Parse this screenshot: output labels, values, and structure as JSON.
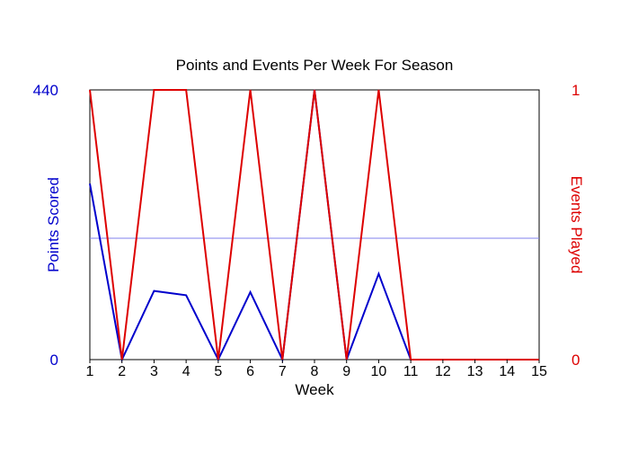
{
  "chart_data": {
    "type": "line",
    "title": "Points and Events Per Week For Season",
    "xlabel": "Week",
    "x": [
      1,
      2,
      3,
      4,
      5,
      6,
      7,
      8,
      9,
      10,
      11,
      12,
      13,
      14,
      15
    ],
    "xlim": [
      1,
      15
    ],
    "grid": false,
    "legend": "none",
    "y_left": {
      "label": "Points Scored",
      "ylim": [
        0,
        440
      ],
      "tick_labels": [
        "0",
        "440"
      ],
      "color": "#0000cc"
    },
    "y_right": {
      "label": "Events Played",
      "ylim": [
        0,
        1
      ],
      "tick_labels": [
        "0",
        "1"
      ],
      "color": "#dd0000"
    },
    "reference_line": {
      "axis": "y_left",
      "value": 198,
      "color": "#8080ee"
    },
    "series": [
      {
        "axis": "y_left",
        "color": "#0000cc",
        "values": [
          287,
          0,
          112,
          105,
          0,
          110,
          0,
          440,
          0,
          140,
          0,
          0,
          0,
          0,
          0
        ]
      },
      {
        "axis": "y_right",
        "color": "#dd0000",
        "values": [
          1,
          0,
          1,
          1,
          0,
          1,
          0,
          1,
          0,
          1,
          0,
          0,
          0,
          0,
          0
        ]
      }
    ]
  }
}
